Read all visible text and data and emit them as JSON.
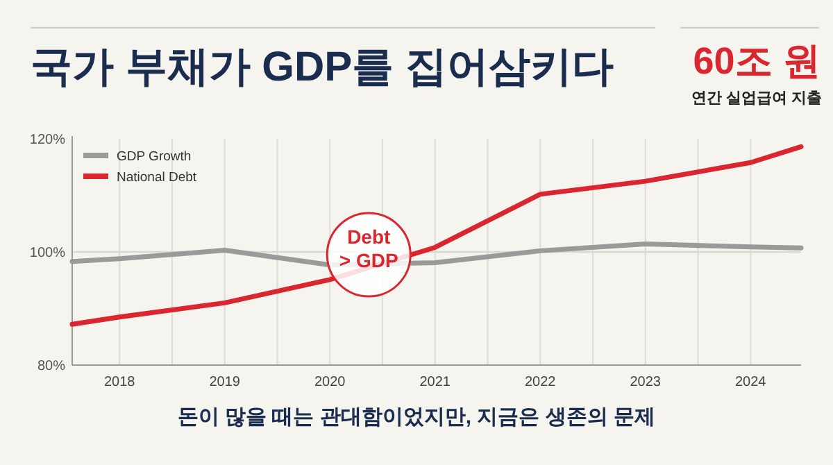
{
  "chart_data": {
    "type": "line",
    "title": "국가 부채가 GDP를 집어삼키다",
    "x": [
      2017.55,
      2018,
      2019,
      2020,
      2021,
      2022,
      2023,
      2024,
      2024.48
    ],
    "series": [
      {
        "name": "GDP Growth",
        "color": "#9a9a9a",
        "values": [
          98.3,
          98.8,
          100.3,
          97.7,
          98.1,
          100.2,
          101.4,
          100.9,
          100.7
        ]
      },
      {
        "name": "National Debt",
        "color": "#d9262f",
        "values": [
          87.2,
          88.5,
          91.0,
          95.1,
          100.8,
          110.2,
          112.5,
          115.8,
          118.6
        ]
      }
    ],
    "xlim": [
      2017.55,
      2024.48
    ],
    "xticks": [
      2018,
      {
        "value": 2018.5,
        "label": null
      },
      2019,
      {
        "value": 2019.5,
        "label": null
      },
      2020,
      {
        "value": 2020.5,
        "label": null
      },
      2021,
      {
        "value": 2021.5,
        "label": null
      },
      2022,
      {
        "value": 2022.5,
        "label": null
      },
      2023,
      {
        "value": 2023.5,
        "label": null
      },
      2024
    ],
    "ylim": [
      80,
      120
    ],
    "yticks": [
      {
        "value": 80,
        "label": "80%"
      },
      {
        "value": 100,
        "label": "100%"
      },
      {
        "value": 120,
        "label": "120%"
      }
    ],
    "grid": "x",
    "legend": "top left",
    "marker": "none",
    "line_style": "solid",
    "ref_lines": [
      {
        "axis": "y",
        "value": 100,
        "color": "#d8d8d4"
      }
    ],
    "annotations": [
      {
        "text": "Debt\n> GDP",
        "x": 2020.37,
        "y": 99.5
      },
      "60조 원",
      "연간 실업급여 지출",
      "돈이 많을 때는 관대함이었지만, 지금은 생존의 문제"
    ]
  }
}
